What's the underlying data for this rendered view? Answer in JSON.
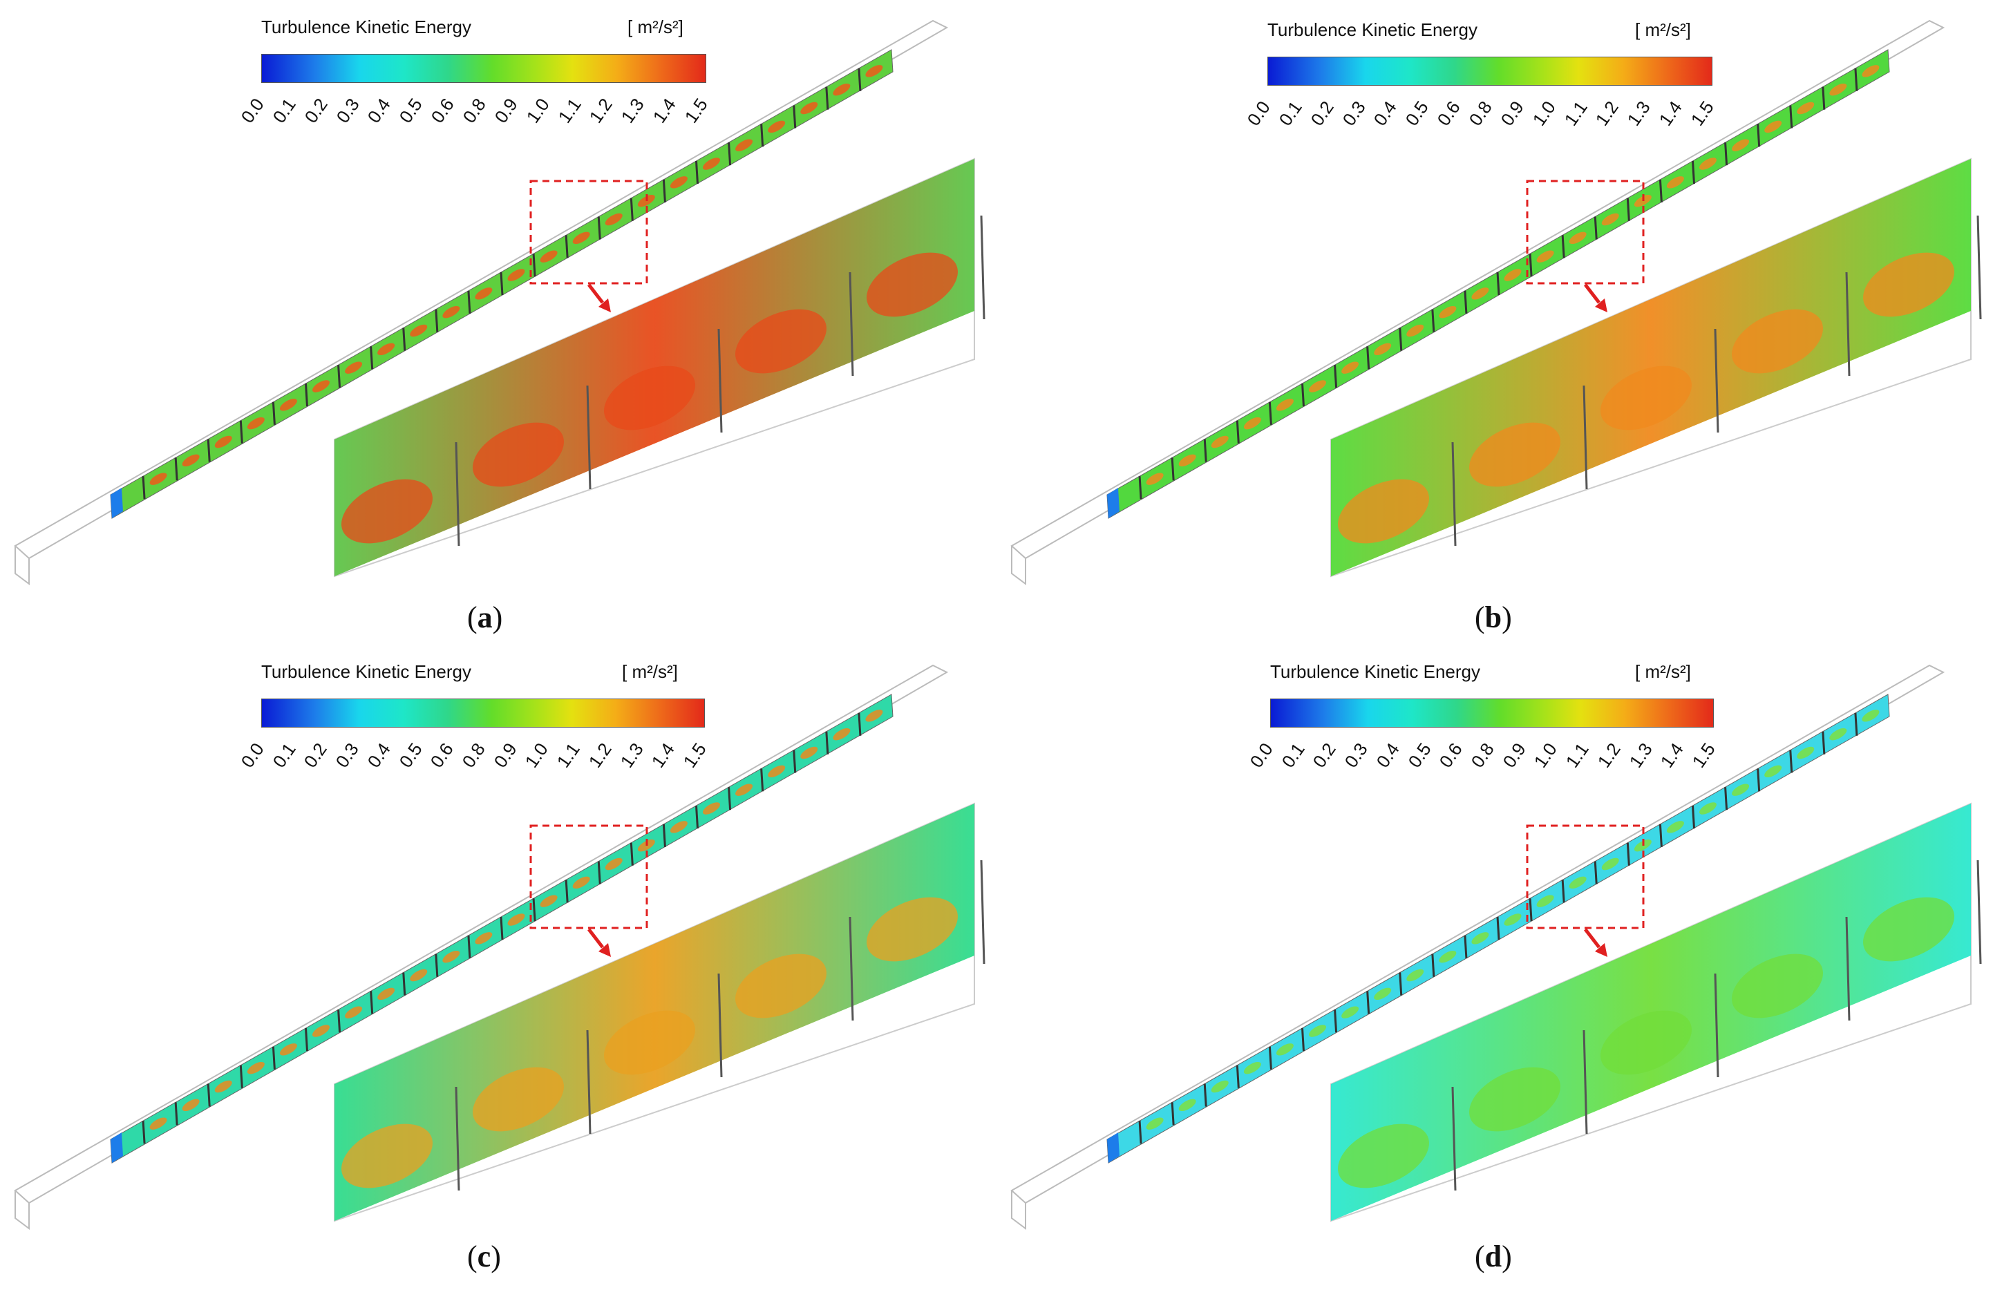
{
  "colorbar": {
    "title": "Turbulence Kinetic Energy",
    "unit_html": "[ m²/s²]",
    "ticks": [
      "0.0",
      "0.1",
      "0.2",
      "0.3",
      "0.4",
      "0.5",
      "0.6",
      "0.8",
      "0.9",
      "1.0",
      "1.1",
      "1.2",
      "1.3",
      "1.4",
      "1.5"
    ],
    "colors": [
      "#0a1bd4",
      "#1d7dea",
      "#19d6ec",
      "#2fd78a",
      "#63dd2a",
      "#e4e110",
      "#ee6a1a",
      "#e32a1a"
    ]
  },
  "panels": [
    {
      "id": "a",
      "caption_open": "(",
      "caption_letter": "a",
      "caption_close": ")",
      "zoom_base": "#5ec64a",
      "zoom_hot": "#e84a1a",
      "channel_base": "#5fcf3e",
      "channel_hot": "#ee5a1a"
    },
    {
      "id": "b",
      "caption_open": "(",
      "caption_letter": "b",
      "caption_close": ")",
      "zoom_base": "#55db3a",
      "zoom_hot": "#f08a1e",
      "channel_base": "#52d83e",
      "channel_hot": "#ee8a1e"
    },
    {
      "id": "c",
      "caption_open": "(",
      "caption_letter": "c",
      "caption_close": ")",
      "zoom_base": "#2edc8e",
      "zoom_hot": "#e9a020",
      "channel_base": "#2fd9a8",
      "channel_hot": "#ea8a1e"
    },
    {
      "id": "d",
      "caption_open": "(",
      "caption_letter": "d",
      "caption_close": ")",
      "zoom_base": "#2ce8cf",
      "zoom_hot": "#72de3a",
      "channel_base": "#3dd8e6",
      "channel_hot": "#7ee040"
    }
  ]
}
